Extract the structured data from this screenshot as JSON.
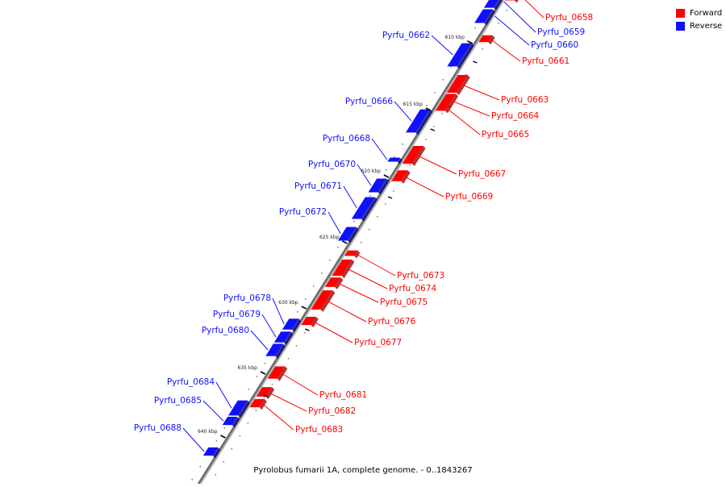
{
  "legend": {
    "forward_label": "Forward",
    "reverse_label": "Reverse",
    "forward_color": "#ff0000",
    "reverse_color": "#1010ff"
  },
  "caption": "Pyrolobus fumarii 1A, complete genome. - 0..1843267",
  "ticks": [
    "610 kbp",
    "615 kbp",
    "620 kbp",
    "625 kbp",
    "630 kbp",
    "635 kbp",
    "640 kbp"
  ],
  "forward_genes": [
    "Pyrfu_0658",
    "Pyrfu_0661",
    "Pyrfu_0663",
    "Pyrfu_0664",
    "Pyrfu_0665",
    "Pyrfu_0667",
    "Pyrfu_0669",
    "Pyrfu_0673",
    "Pyrfu_0674",
    "Pyrfu_0675",
    "Pyrfu_0676",
    "Pyrfu_0677",
    "Pyrfu_0681",
    "Pyrfu_0682",
    "Pyrfu_0683"
  ],
  "reverse_genes": [
    "Pyrfu_0659",
    "Pyrfu_0660",
    "Pyrfu_0662",
    "Pyrfu_0666",
    "Pyrfu_0668",
    "Pyrfu_0670",
    "Pyrfu_0671",
    "Pyrfu_0672",
    "Pyrfu_0678",
    "Pyrfu_0679",
    "Pyrfu_0680",
    "Pyrfu_0684",
    "Pyrfu_0685",
    "Pyrfu_0688"
  ]
}
